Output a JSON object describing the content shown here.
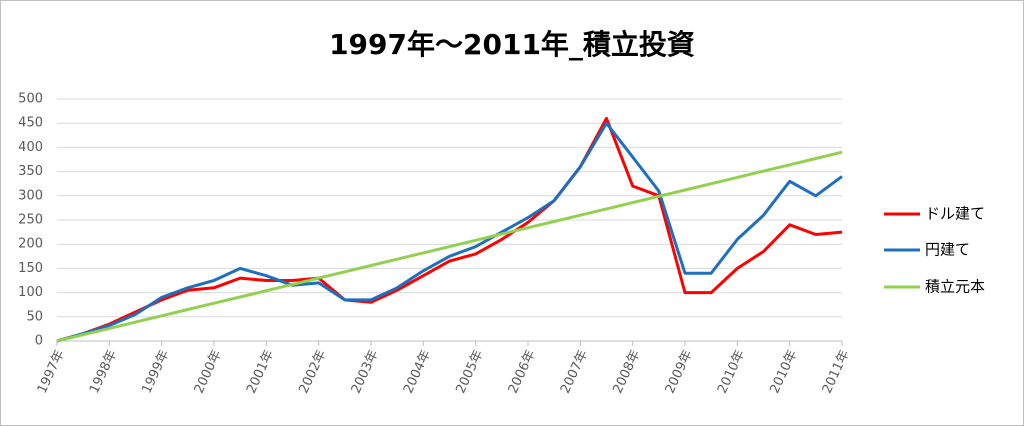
{
  "chart_data": {
    "type": "line",
    "title": "1997年～2011年_積立投資",
    "x": [
      0,
      0.5,
      1,
      1.5,
      2,
      2.5,
      3,
      3.5,
      4,
      4.5,
      5,
      5.5,
      6,
      6.5,
      7,
      7.5,
      8,
      8.5,
      9,
      9.5,
      10,
      10.5,
      11,
      11.5,
      12,
      12.5,
      13,
      13.5,
      14,
      14.5,
      15
    ],
    "series": [
      {
        "name": "ドル建て",
        "color": "#ff0000",
        "values": [
          0,
          15,
          35,
          60,
          85,
          105,
          110,
          130,
          125,
          125,
          130,
          85,
          80,
          105,
          135,
          165,
          180,
          210,
          245,
          290,
          360,
          460,
          320,
          300,
          100,
          100,
          150,
          185,
          240,
          220,
          225
        ]
      },
      {
        "name": "円建て",
        "color": "#1f6fbf",
        "values": [
          0,
          15,
          32,
          55,
          90,
          110,
          125,
          150,
          135,
          115,
          120,
          85,
          85,
          110,
          145,
          175,
          195,
          225,
          255,
          290,
          360,
          450,
          380,
          310,
          140,
          140,
          210,
          260,
          330,
          300,
          340
        ]
      },
      {
        "name": "積立元本",
        "color": "#92d050",
        "values": [
          0,
          13,
          26,
          39,
          52,
          65,
          78,
          91,
          104,
          117,
          130,
          143,
          156,
          169,
          182,
          195,
          208,
          221,
          234,
          247,
          260,
          273,
          286,
          299,
          312,
          325,
          338,
          351,
          364,
          377,
          390
        ]
      }
    ],
    "xlim": [
      0,
      15
    ],
    "xticks": [
      {
        "value": 0,
        "label": "1997年"
      },
      {
        "value": 1,
        "label": "1998年"
      },
      {
        "value": 2,
        "label": "1999年"
      },
      {
        "value": 3,
        "label": "2000年"
      },
      {
        "value": 4,
        "label": "2001年"
      },
      {
        "value": 5,
        "label": "2002年"
      },
      {
        "value": 6,
        "label": "2003年"
      },
      {
        "value": 7,
        "label": "2004年"
      },
      {
        "value": 8,
        "label": "2005年"
      },
      {
        "value": 9,
        "label": "2006年"
      },
      {
        "value": 10,
        "label": "2007年"
      },
      {
        "value": 11,
        "label": "2008年"
      },
      {
        "value": 12,
        "label": "2009年"
      },
      {
        "value": 13,
        "label": "2010年"
      },
      {
        "value": 14,
        "label": "2010年"
      },
      {
        "value": 15,
        "label": "2011年"
      }
    ],
    "ylim": [
      0,
      500
    ],
    "yticks": [
      0,
      50,
      100,
      150,
      200,
      250,
      300,
      350,
      400,
      450,
      500
    ],
    "grid": true,
    "legend": "right"
  }
}
